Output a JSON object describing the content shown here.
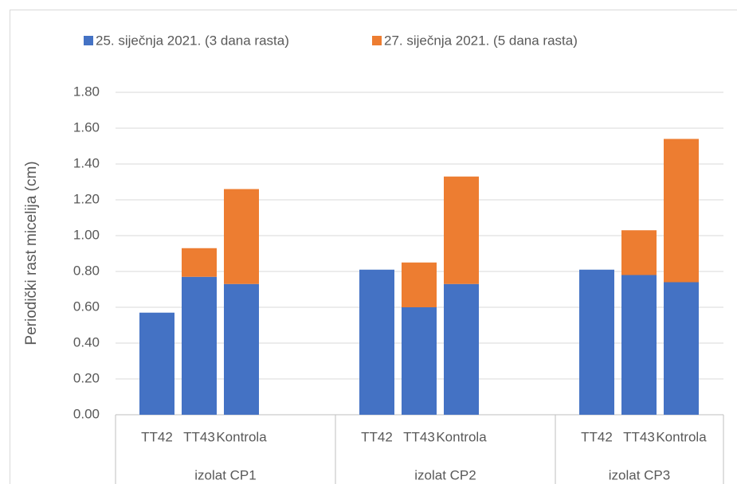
{
  "chart_data": {
    "type": "stacked_bar",
    "y_label": "Periodički rast micelija (cm)",
    "groups": [
      "izolat CP1",
      "izolat CP2",
      "izolat CP3"
    ],
    "categories": [
      "TT42",
      "TT43",
      "Kontrola",
      "TT42",
      "TT43",
      "Kontrola",
      "TT42",
      "TT43",
      "Kontrola"
    ],
    "series": [
      {
        "name": "25. siječnja 2021. (3 dana rasta)",
        "color": "#4472c4",
        "values": [
          0.57,
          0.77,
          0.73,
          0.81,
          0.6,
          0.73,
          0.81,
          0.78,
          0.74
        ]
      },
      {
        "name": "27. siječnja 2021. (5 dana rasta)",
        "color": "#ed7d31",
        "values": [
          0,
          0.16,
          0.53,
          0,
          0.25,
          0.6,
          0,
          0.25,
          0.8
        ]
      }
    ],
    "ylim": [
      0,
      1.8
    ],
    "yticks": [
      {
        "value": 0,
        "label": "0.00"
      },
      {
        "value": 0.2,
        "label": "0.20"
      },
      {
        "value": 0.4,
        "label": "0.40"
      },
      {
        "value": 0.6,
        "label": "0.60"
      },
      {
        "value": 0.8,
        "label": "0.80"
      },
      {
        "value": 1.0,
        "label": "1.00"
      },
      {
        "value": 1.2,
        "label": "1.20"
      },
      {
        "value": 1.4,
        "label": "1.40"
      },
      {
        "value": 1.6,
        "label": "1.60"
      },
      {
        "value": 1.8,
        "label": "1.80"
      }
    ],
    "grid": true,
    "legend": "top"
  }
}
